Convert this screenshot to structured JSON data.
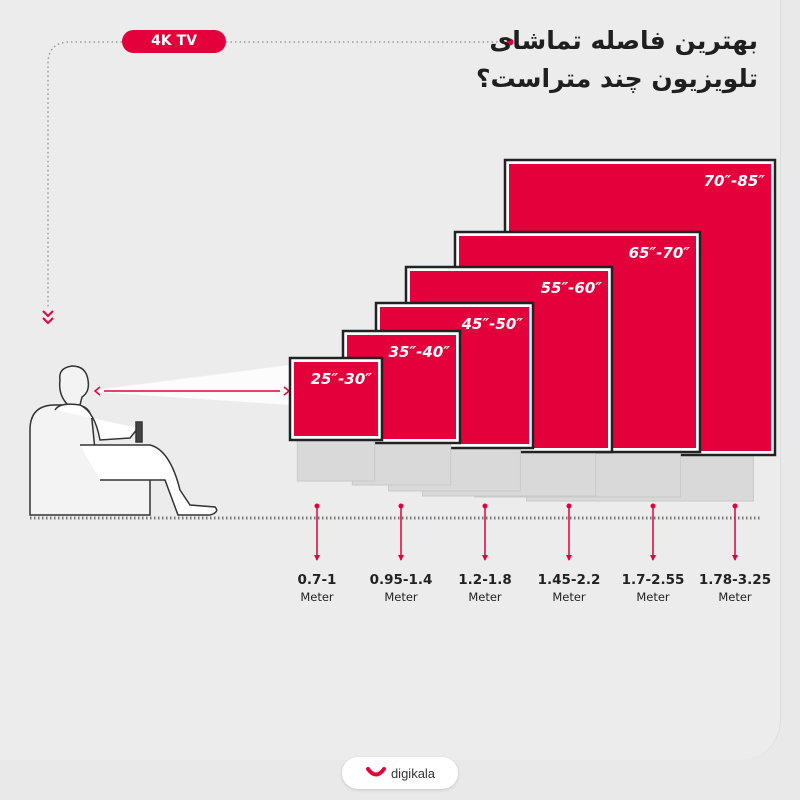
{
  "badge": "4K TV",
  "title": [
    "بهترین فاصله تماشای",
    "تلویزیون چند متراست؟"
  ],
  "tvs": [
    {
      "size": "25″-30″"
    },
    {
      "size": "35″-40″"
    },
    {
      "size": "45″-50″"
    },
    {
      "size": "55″-60″"
    },
    {
      "size": "65″-70″"
    },
    {
      "size": "70″-85″"
    }
  ],
  "distances": [
    {
      "range": "0.7-1",
      "unit": "Meter"
    },
    {
      "range": "0.95-1.4",
      "unit": "Meter"
    },
    {
      "range": "1.2-1.8",
      "unit": "Meter"
    },
    {
      "range": "1.45-2.2",
      "unit": "Meter"
    },
    {
      "range": "1.7-2.55",
      "unit": "Meter"
    },
    {
      "range": "1.78-3.25",
      "unit": "Meter"
    }
  ],
  "brand": "digikala",
  "colors": {
    "accent": "#e4003a",
    "text": "#1f1f1f",
    "background": "#ececec"
  }
}
